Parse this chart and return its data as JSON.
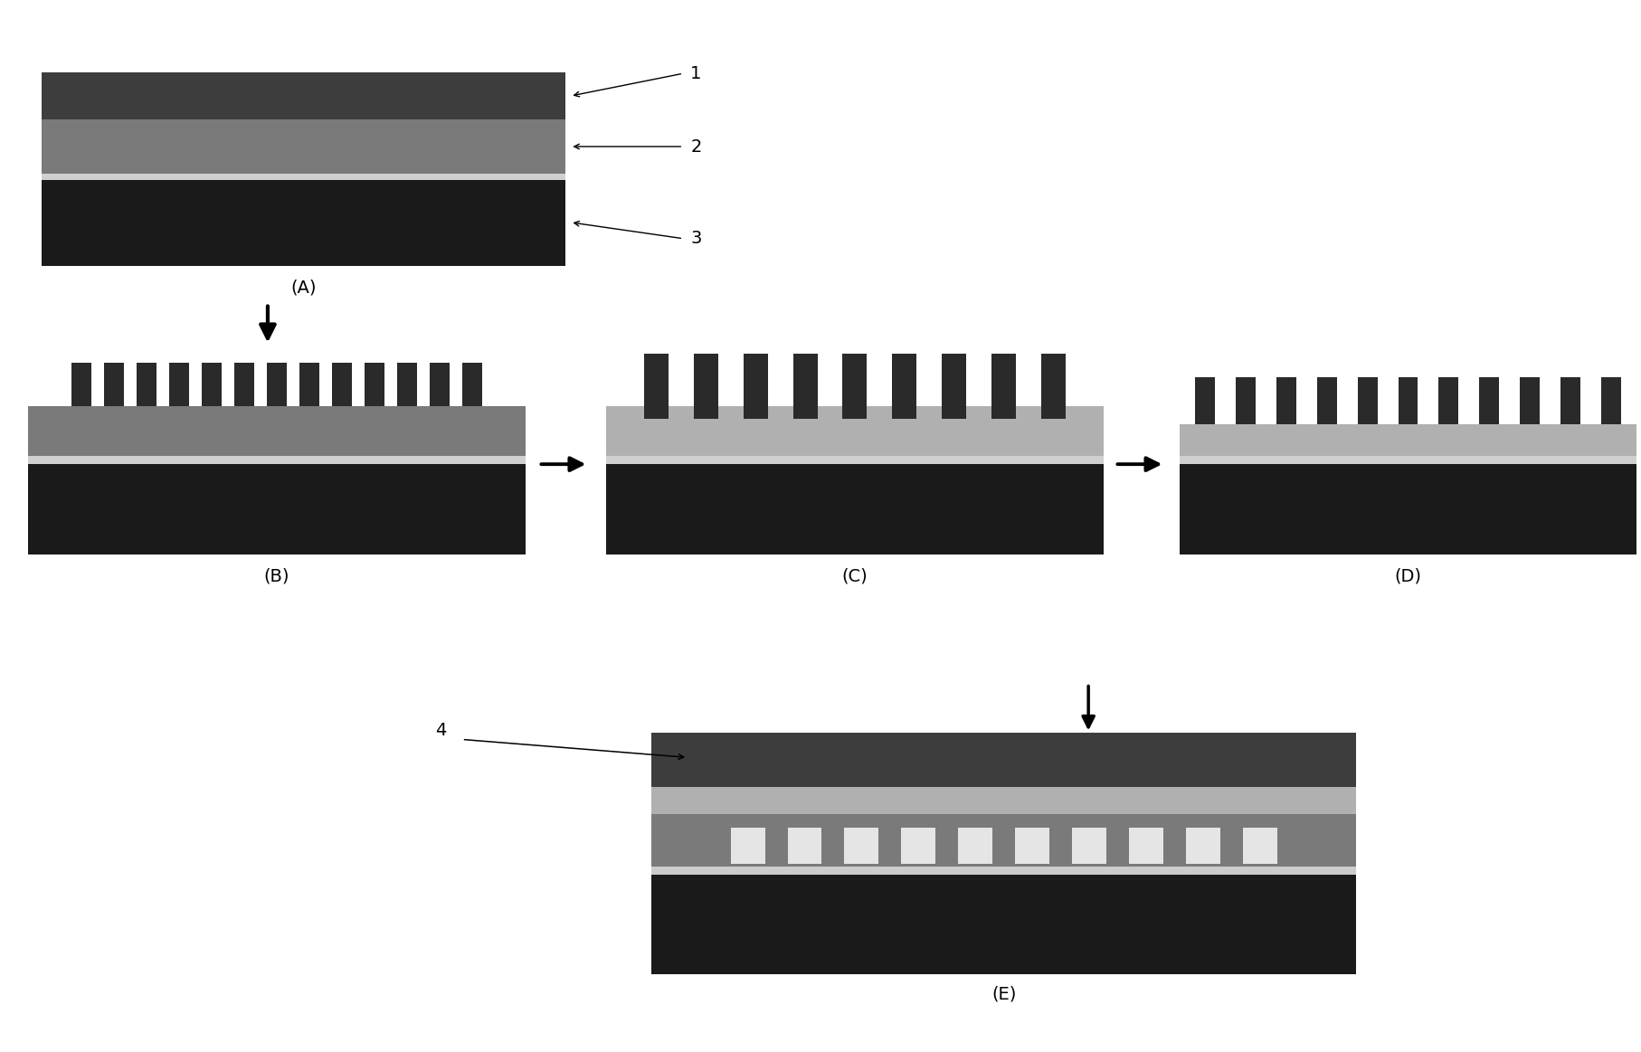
{
  "bg_color": "#ffffff",
  "col_dark": "#3d3d3d",
  "col_medium": "#7a7a7a",
  "col_light_gray": "#b0b0b0",
  "col_very_dark": "#1a1a1a",
  "col_white_gap": "#e8e8e8",
  "col_tooth": "#2a2a2a",
  "col_tooth_C": "#4a4a4a",
  "label_A": "(A)",
  "label_B": "(B)",
  "label_C": "(C)",
  "label_D": "(D)",
  "label_E": "(E)"
}
